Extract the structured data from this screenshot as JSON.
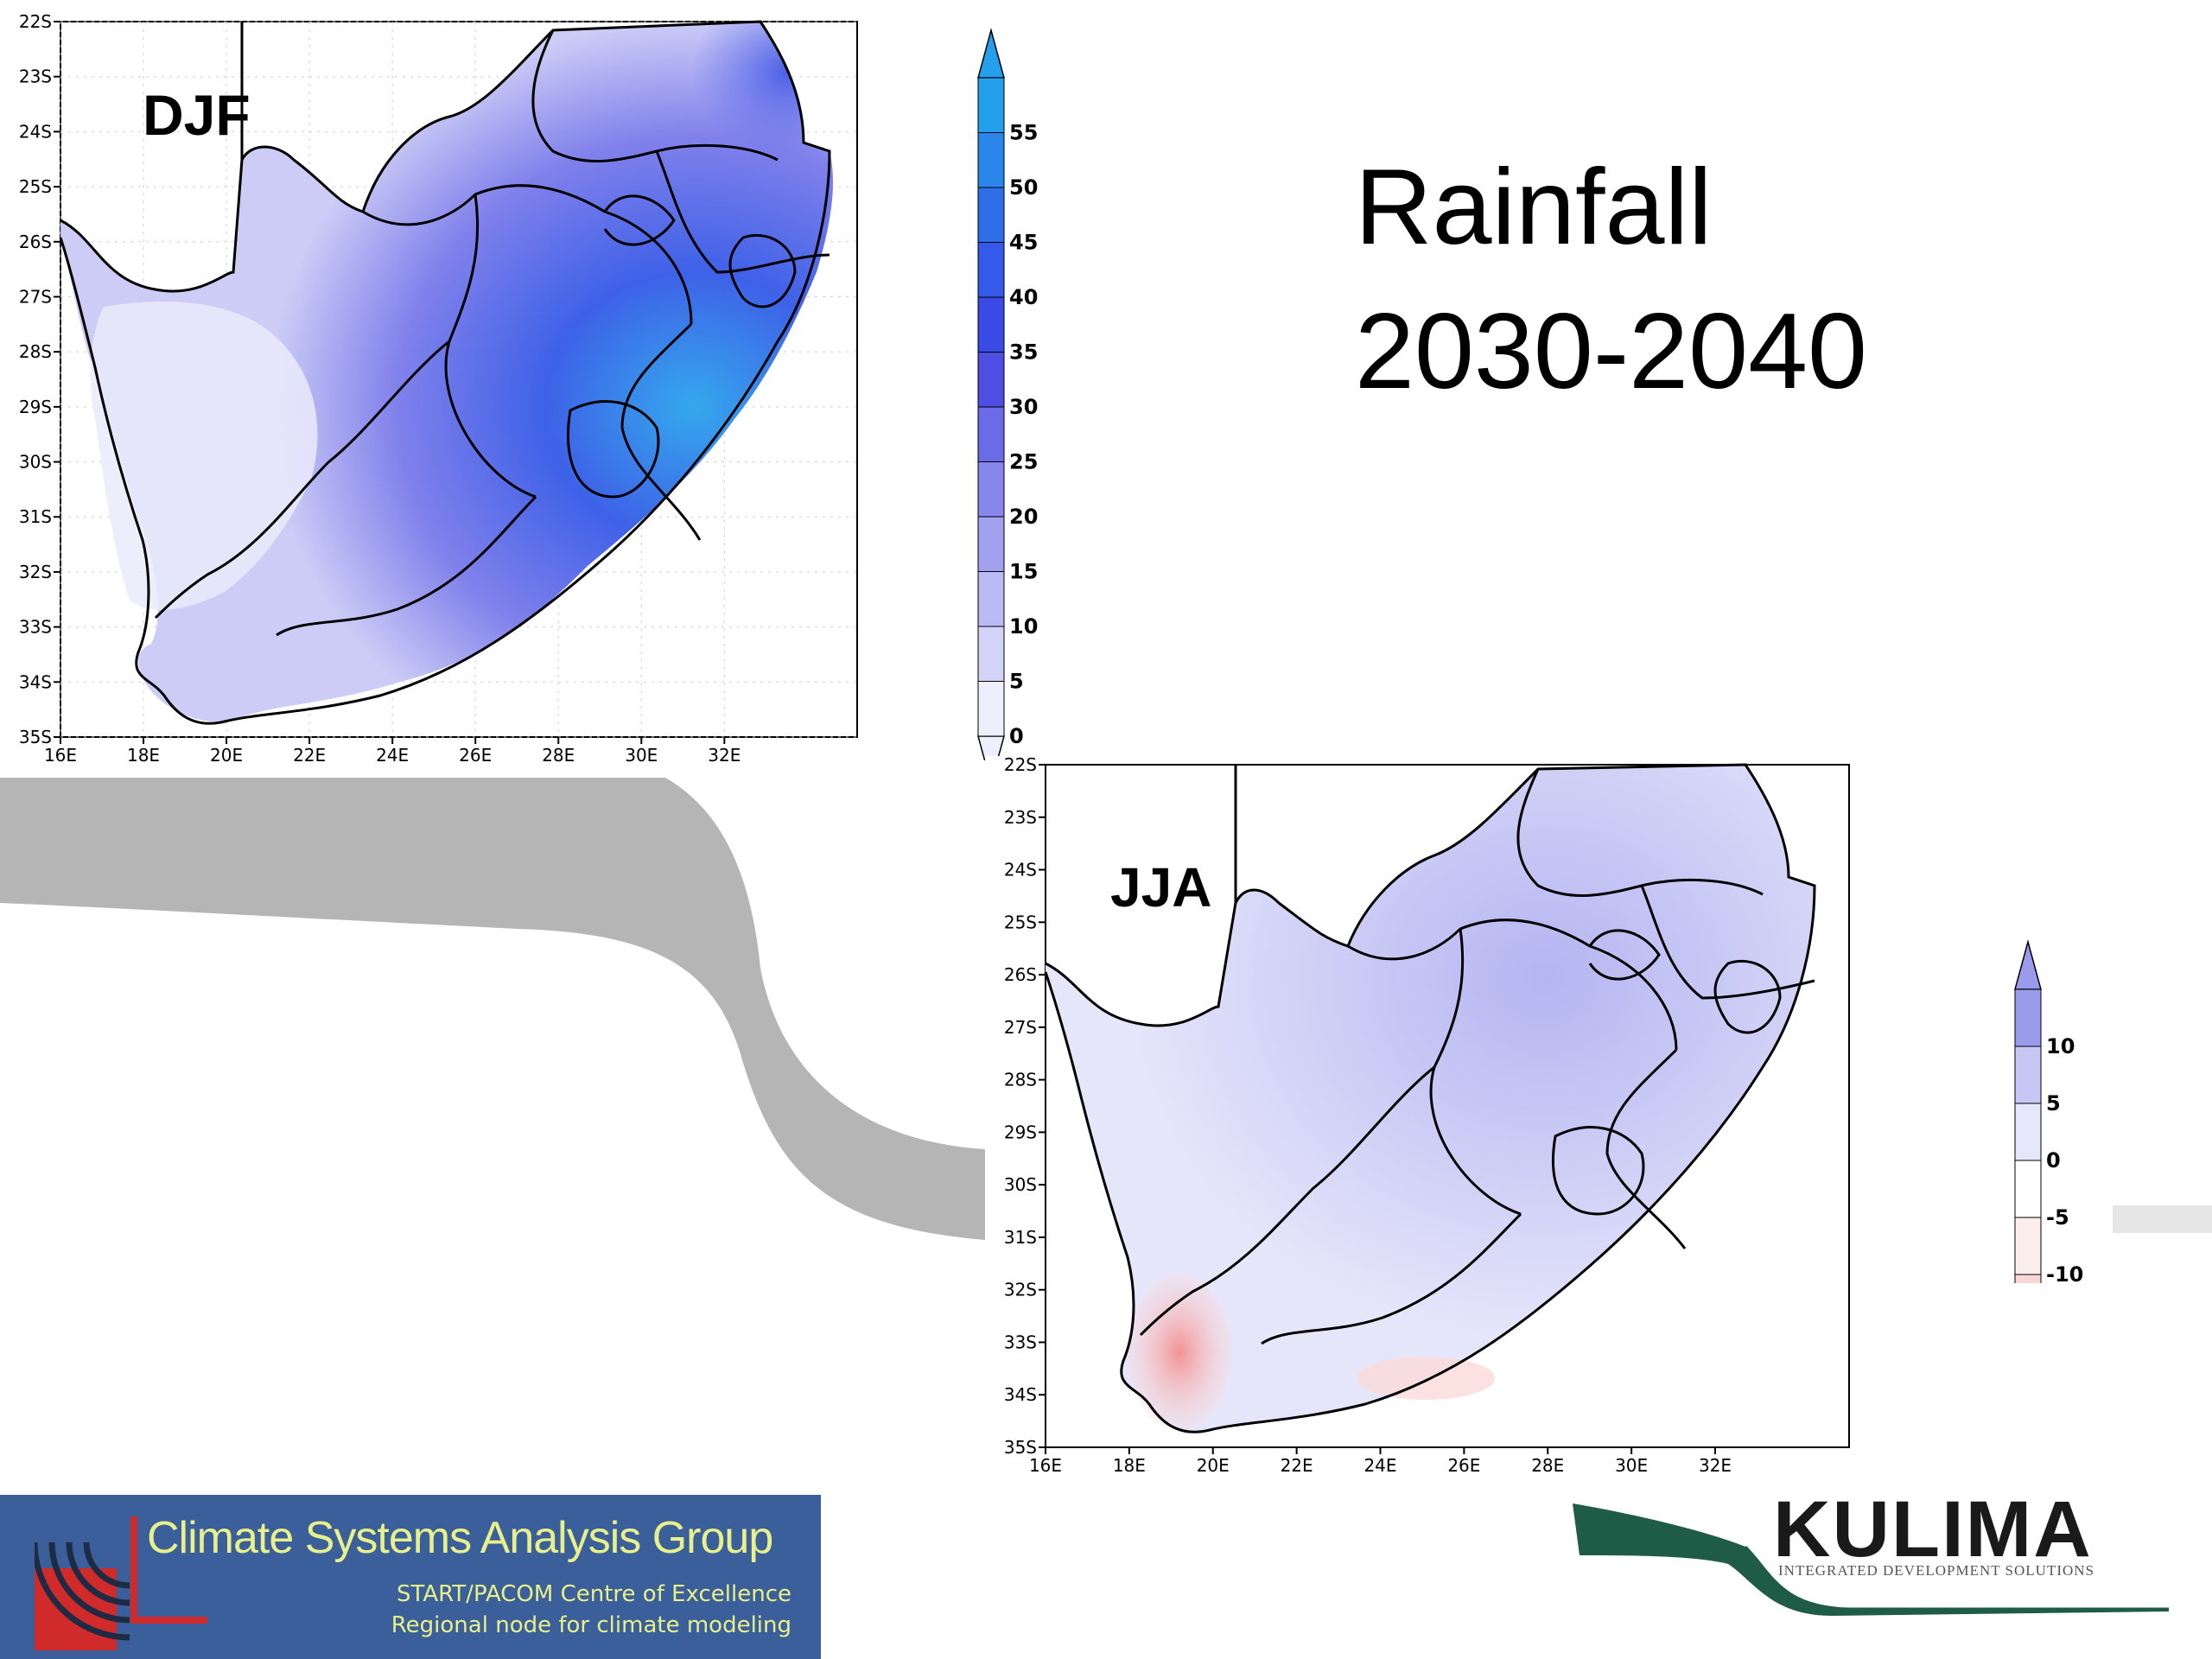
{
  "slide": {
    "title_line1": "Rainfall",
    "title_line2": "2030-2040"
  },
  "maps": {
    "djf": {
      "label": "DJF",
      "lat_ticks": [
        "22S",
        "23S",
        "24S",
        "25S",
        "26S",
        "27S",
        "28S",
        "29S",
        "30S",
        "31S",
        "32S",
        "33S",
        "34S",
        "35S"
      ],
      "lon_ticks": [
        "16E",
        "18E",
        "20E",
        "22E",
        "24E",
        "26E",
        "28E",
        "30E",
        "32E"
      ]
    },
    "jja": {
      "label": "JJA",
      "lat_ticks": [
        "22S",
        "23S",
        "24S",
        "25S",
        "26S",
        "27S",
        "28S",
        "29S",
        "30S",
        "31S",
        "32S",
        "33S",
        "34S",
        "35S"
      ],
      "lon_ticks": [
        "16E",
        "18E",
        "20E",
        "22E",
        "24E",
        "26E",
        "28E",
        "30E",
        "32E"
      ]
    }
  },
  "colorbars": {
    "djf": {
      "labels": [
        "55",
        "50",
        "45",
        "40",
        "35",
        "30",
        "25",
        "20",
        "15",
        "10",
        "5",
        "0"
      ],
      "colors": [
        "#eeeefc",
        "#d3d3f8",
        "#babaf4",
        "#a1a1f0",
        "#8686ec",
        "#6b6be8",
        "#4e4ee4",
        "#3a4ae4",
        "#3559e8",
        "#2f6ee9",
        "#2a86ea",
        "#249fec"
      ]
    },
    "jja": {
      "labels": [
        "10",
        "5",
        "0",
        "-5",
        "-10"
      ],
      "colors": [
        "#fad7d7",
        "#fdeeee",
        "#ffffff",
        "#e7e7fb",
        "#c7c7f5",
        "#9b9bee"
      ]
    }
  },
  "logos": {
    "csag": {
      "title": "Climate Systems Analysis Group",
      "line1": "START/PACOM Centre of Excellence",
      "line2": "Regional node for climate modeling"
    },
    "kulima": {
      "name": "KULIMA",
      "tagline": "INTEGRATED DEVELOPMENT SOLUTIONS"
    }
  }
}
